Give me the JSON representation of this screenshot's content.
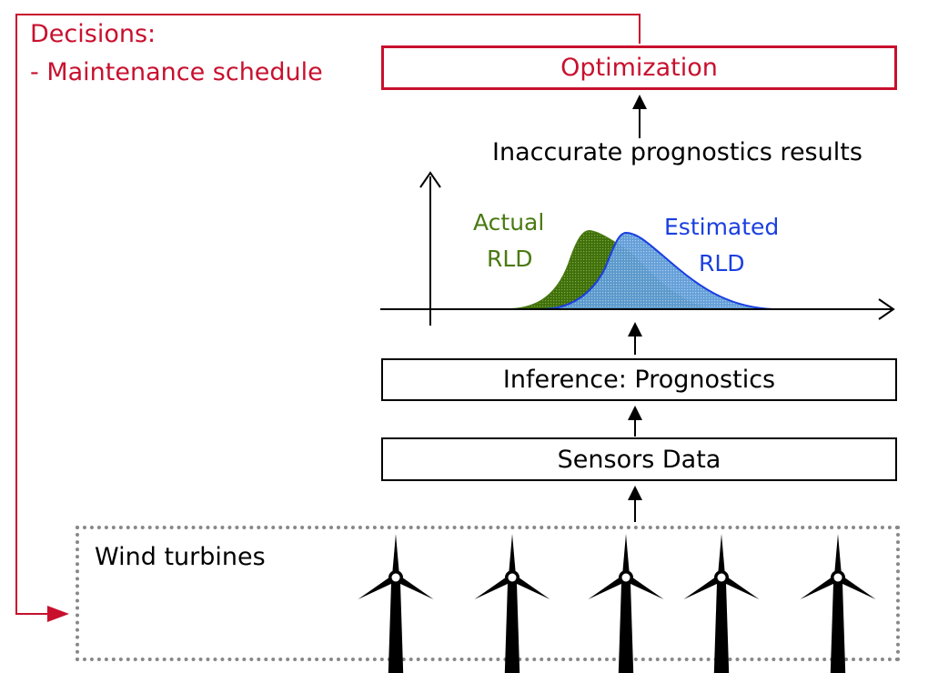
{
  "decisions": {
    "title": "Decisions:",
    "item": "- Maintenance schedule"
  },
  "optimization_label": "Optimization",
  "prognostics_result_label": "Inaccurate prognostics results",
  "rld_chart": {
    "actual_label_line1": "Actual",
    "actual_label_line2": "RLD",
    "estimated_label_line1": "Estimated",
    "estimated_label_line2": "RLD"
  },
  "inference_label": "Inference: Prognostics",
  "sensors_label": "Sensors Data",
  "wind_farm": {
    "label": "Wind turbines",
    "turbine_count": 5
  },
  "colors": {
    "decision_red": "#c8102e",
    "actual_green": "#4a7a12",
    "estimated_blue": "#1a3fe0",
    "estimated_fill": "#6fa8dc"
  }
}
